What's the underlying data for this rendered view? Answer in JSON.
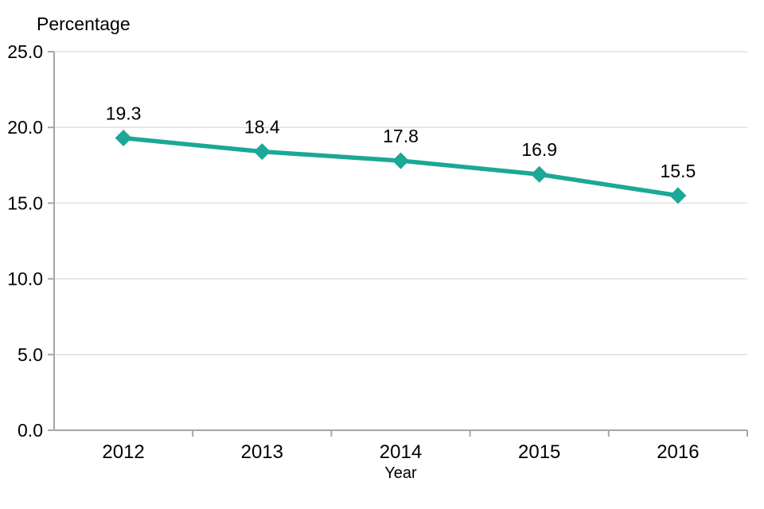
{
  "chart_data": {
    "type": "line",
    "title": "",
    "ylabel": "Percentage",
    "xlabel": "Year",
    "categories": [
      "2012",
      "2013",
      "2014",
      "2015",
      "2016"
    ],
    "series": [
      {
        "name": "Percentage",
        "values": [
          19.3,
          18.4,
          17.8,
          16.9,
          15.5
        ]
      }
    ],
    "data_labels": [
      "19.3",
      "18.4",
      "17.8",
      "16.9",
      "15.5"
    ],
    "y_ticks": [
      "0.0",
      "5.0",
      "10.0",
      "15.0",
      "20.0",
      "25.0"
    ],
    "ylim": [
      0,
      25
    ],
    "grid": "horizontal",
    "legend": "none",
    "marker": "diamond",
    "colors": {
      "line": "#1BA896",
      "gridline": "#DCDCDC",
      "axis": "#A6A6A6",
      "text": "#000000",
      "background": "#FFFFFF"
    }
  }
}
